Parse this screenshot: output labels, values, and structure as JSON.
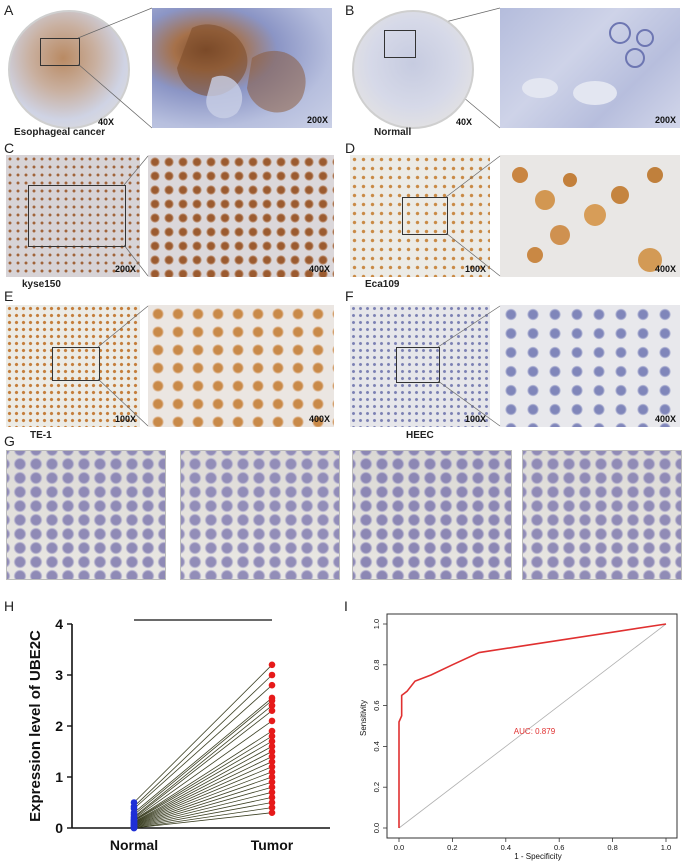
{
  "panels": {
    "A": {
      "letter": "A",
      "caption": "Esophageal cancer",
      "mag_low": "40X",
      "mag_high": "200X"
    },
    "B": {
      "letter": "B",
      "caption": "Normall",
      "mag_low": "40X",
      "mag_high": "200X"
    },
    "C": {
      "letter": "C",
      "caption": "kyse150",
      "mag_low": "200X",
      "mag_high": "400X"
    },
    "D": {
      "letter": "D",
      "caption": "Eca109",
      "mag_low": "100X",
      "mag_high": "400X"
    },
    "E": {
      "letter": "E",
      "caption": "TE-1",
      "mag_low": "100X",
      "mag_high": "400X"
    },
    "F": {
      "letter": "F",
      "caption": "HEEC",
      "mag_low": "100X",
      "mag_high": "400X"
    },
    "G": {
      "letter": "G"
    },
    "H": {
      "letter": "H"
    },
    "I": {
      "letter": "I"
    }
  },
  "colors": {
    "dab_brown": "#9a5a25",
    "hematoxylin_blue": "#6f78b8",
    "normal_points": "#1f2fd6",
    "tumor_points": "#e61a1a",
    "pair_lines": "#3b3f22",
    "roc_curve": "#e03030"
  },
  "chart_data": [
    {
      "type": "scatter",
      "panel": "H",
      "ylabel": "Expression level of UBE2C",
      "categories": [
        "Normal",
        "Tumor"
      ],
      "ylim": [
        0,
        4
      ],
      "yticks": [
        "0",
        "1",
        "2",
        "3",
        "4"
      ],
      "significance": "***",
      "series": [
        {
          "name": "Normal",
          "values": [
            0.5,
            0.42,
            0.38,
            0.3,
            0.26,
            0.22,
            0.2,
            0.18,
            0.16,
            0.15,
            0.14,
            0.12,
            0.11,
            0.1,
            0.09,
            0.08,
            0.07,
            0.06,
            0.05,
            0.04,
            0.03,
            0.02,
            0.01,
            0.0,
            0.0
          ]
        },
        {
          "name": "Tumor",
          "values": [
            3.2,
            3.0,
            2.8,
            2.55,
            2.5,
            2.4,
            2.3,
            2.1,
            1.9,
            1.8,
            1.7,
            1.6,
            1.5,
            1.4,
            1.3,
            1.2,
            1.1,
            1.0,
            0.9,
            0.8,
            0.7,
            0.6,
            0.5,
            0.4,
            0.3
          ]
        }
      ]
    },
    {
      "type": "line",
      "panel": "I",
      "xlabel": "1 - Specificity",
      "ylabel": "Sensitivity",
      "xlim": [
        0,
        1
      ],
      "ylim": [
        0,
        1
      ],
      "xticks": [
        "0.0",
        "0.2",
        "0.4",
        "0.6",
        "0.8",
        "1.0"
      ],
      "yticks": [
        "0.0",
        "0.2",
        "0.4",
        "0.6",
        "0.8",
        "1.0"
      ],
      "annotation": "AUC: 0.879",
      "series": [
        {
          "name": "ROC",
          "x": [
            0.0,
            0.0,
            0.0,
            0.01,
            0.01,
            0.02,
            0.03,
            0.06,
            0.12,
            0.2,
            0.3,
            0.45,
            0.6,
            0.8,
            1.0
          ],
          "y": [
            0.0,
            0.3,
            0.52,
            0.55,
            0.65,
            0.66,
            0.67,
            0.72,
            0.75,
            0.8,
            0.86,
            0.89,
            0.92,
            0.96,
            1.0
          ]
        },
        {
          "name": "",
          "x": [
            0,
            1
          ],
          "y": [
            0,
            1
          ]
        }
      ]
    }
  ]
}
